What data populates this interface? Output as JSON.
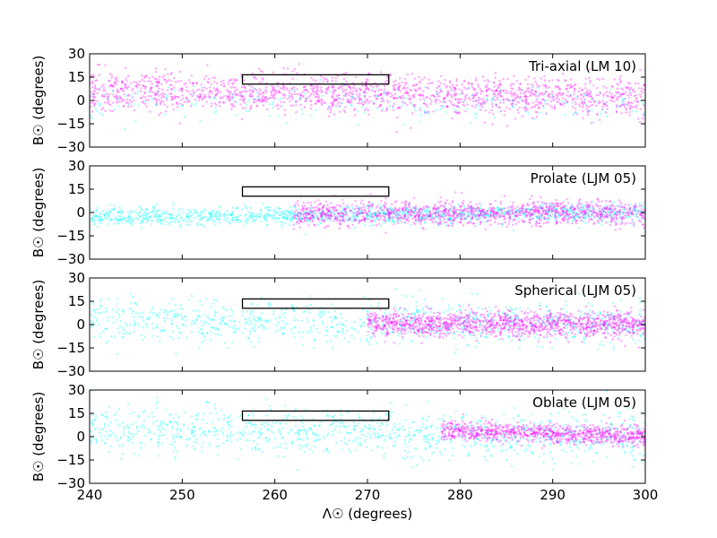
{
  "chart_data": {
    "type": "scatter",
    "x_ticks": [
      "240",
      "250",
      "260",
      "270",
      "280",
      "290",
      "300"
    ],
    "y_ticks": [
      "30",
      "15",
      "0",
      "−15",
      "−30"
    ],
    "xlim": [
      240,
      300
    ],
    "ylim": [
      -30,
      30
    ],
    "xlabel": "Λ☉ (degrees)",
    "ylabel": "B☉ (degrees)",
    "colors": {
      "main": "#ff00ff",
      "secondary": "#00ffff",
      "box": "#000000"
    },
    "box": {
      "x": [
        256.5,
        272.3
      ],
      "y": [
        10.5,
        16.5
      ]
    },
    "panels": [
      {
        "label": "Tri-axial (LM 10)",
        "series": [
          {
            "color": "#ff00ff",
            "x_range": [
              240,
              300
            ],
            "y_center_at_x_range": [
              6,
              2
            ],
            "y_spread": 6,
            "n": 1700
          },
          {
            "color": "#00ffff",
            "x_range": [
              240,
              300
            ],
            "y_center_at_x_range": [
              -2,
              -2
            ],
            "y_spread": 6,
            "n": 250
          }
        ]
      },
      {
        "label": "Prolate (LJM 05)",
        "series": [
          {
            "color": "#00ffff",
            "x_range": [
              240,
              300
            ],
            "y_center_at_x_range": [
              -3,
              0
            ],
            "y_spread": 3,
            "n": 1400
          },
          {
            "color": "#ff00ff",
            "x_range": [
              262,
              300
            ],
            "y_center_at_x_range": [
              -1,
              0
            ],
            "y_spread": 4,
            "n": 1300
          }
        ]
      },
      {
        "label": "Spherical (LJM 05)",
        "series": [
          {
            "color": "#00ffff",
            "x_range": [
              240,
              300
            ],
            "y_center_at_x_range": [
              3,
              0
            ],
            "y_spread": 7,
            "n": 1000
          },
          {
            "color": "#ff00ff",
            "x_range": [
              270,
              300
            ],
            "y_center_at_x_range": [
              1,
              0
            ],
            "y_spread": 4,
            "n": 1300
          }
        ]
      },
      {
        "label": "Oblate (LJM 05)",
        "series": [
          {
            "color": "#00ffff",
            "x_range": [
              240,
              300
            ],
            "y_center_at_x_range": [
              5,
              0
            ],
            "y_spread": 8,
            "n": 1100
          },
          {
            "color": "#ff00ff",
            "x_range": [
              278,
              300
            ],
            "y_center_at_x_range": [
              4,
              0
            ],
            "y_spread": 3,
            "n": 900
          }
        ]
      }
    ]
  }
}
